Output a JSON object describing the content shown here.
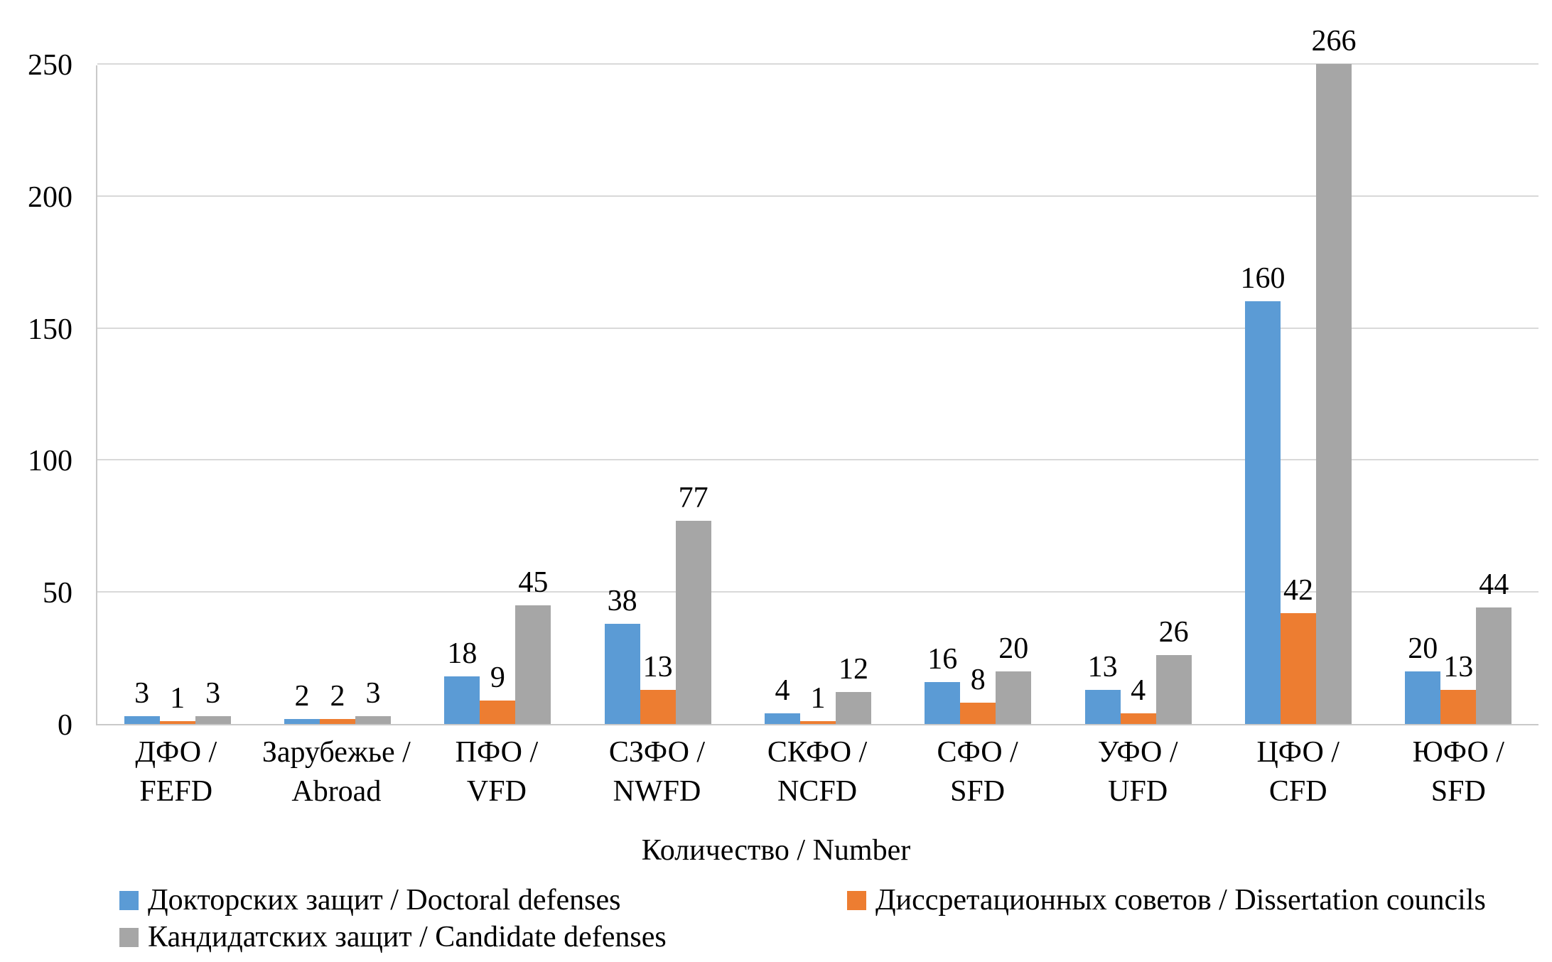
{
  "chart_data": {
    "type": "bar",
    "title": "",
    "xlabel": "Количество / Number",
    "ylabel": "",
    "ylim": [
      0,
      250
    ],
    "y_ticks": [
      0,
      50,
      100,
      150,
      200,
      250
    ],
    "grid": true,
    "legend_position": "bottom",
    "clip_max": 250,
    "categories": [
      "ДФО / FEFD",
      "Зарубежье / Abroad",
      "ПФО / VFD",
      "СЗФО / NWFD",
      "СКФО / NCFD",
      "СФО / SFD",
      "УФО / UFD",
      "ЦФО / CFD",
      "ЮФО / SFD"
    ],
    "category_lines": [
      [
        "ДФО /",
        "FEFD"
      ],
      [
        "Зарубежье /",
        "Abroad"
      ],
      [
        "ПФО /",
        "VFD"
      ],
      [
        "СЗФО /",
        "NWFD"
      ],
      [
        "СКФО /",
        "NCFD"
      ],
      [
        "СФО /",
        "SFD"
      ],
      [
        "УФО /",
        "UFD"
      ],
      [
        "ЦФО /",
        "CFD"
      ],
      [
        "ЮФО /",
        "SFD"
      ]
    ],
    "series": [
      {
        "name": "Докторских защит / Doctoral defenses",
        "color": "#5B9BD5",
        "values": [
          3,
          2,
          18,
          38,
          4,
          16,
          13,
          160,
          20
        ]
      },
      {
        "name": "Диссретационных советов / Dissertation councils",
        "color": "#ED7D31",
        "values": [
          1,
          2,
          9,
          13,
          1,
          8,
          4,
          42,
          13
        ]
      },
      {
        "name": "Кандидатских защит / Candidate defenses",
        "color": "#A6A6A6",
        "values": [
          3,
          3,
          45,
          77,
          12,
          20,
          26,
          266,
          44
        ]
      }
    ]
  },
  "colors": {
    "gridline": "#d9d9d9",
    "axis_line": "#c9c9c9",
    "text": "#000000",
    "background": "#ffffff"
  }
}
